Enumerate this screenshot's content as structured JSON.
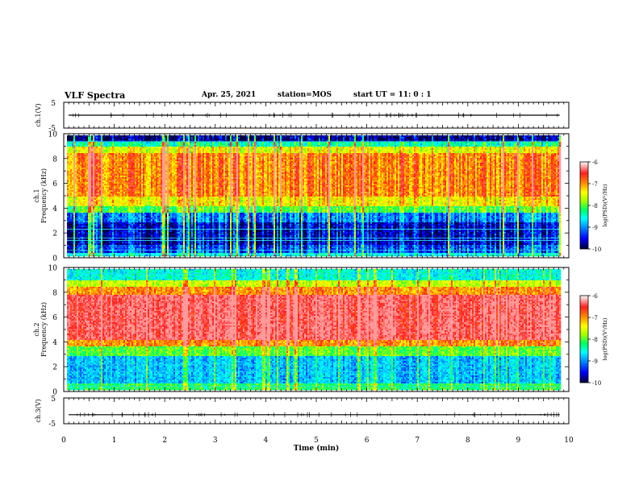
{
  "header": {
    "title": "VLF Spectra",
    "date": "Apr. 25, 2021",
    "station": "station=MOS",
    "start": "start  UT =   11: 0  : 1"
  },
  "colors": {
    "spectrum_scale": [
      "#00003a",
      "#0000ff",
      "#0090ff",
      "#00ffff",
      "#00ff60",
      "#a0ff00",
      "#ffff00",
      "#ff9000",
      "#ff2020",
      "#ff9a9a"
    ],
    "trace": "#000000"
  },
  "chart_data": [
    {
      "id": "ch1-waveform",
      "type": "line",
      "ylabel": "ch.1(V)",
      "yticks": [
        "5",
        "-5"
      ],
      "ylim": [
        -5,
        5
      ],
      "level": 0
    },
    {
      "id": "ch1-spectrogram",
      "type": "heatmap",
      "ylabel_line1": "ch.1",
      "ylabel_line2": "Frequency (kHz)",
      "yticks": [
        "0",
        "2",
        "4",
        "6",
        "8",
        "10"
      ],
      "ylim": [
        0,
        10
      ],
      "colorbar": {
        "label": "log(PSD)(V²/Hz)",
        "ticks": [
          "-6",
          "-7",
          "-8",
          "-9",
          "-10"
        ],
        "range": [
          -10,
          -6
        ]
      },
      "bands": [
        {
          "from": 0.0,
          "to": 0.4,
          "level": -8.6
        },
        {
          "from": 0.4,
          "to": 1.0,
          "level": -9.3
        },
        {
          "from": 1.0,
          "to": 2.8,
          "level": -9.6
        },
        {
          "from": 2.8,
          "to": 3.6,
          "level": -9.1
        },
        {
          "from": 3.6,
          "to": 4.2,
          "level": -8.0
        },
        {
          "from": 4.2,
          "to": 5.0,
          "level": -7.3
        },
        {
          "from": 5.0,
          "to": 8.4,
          "level": -6.8
        },
        {
          "from": 8.4,
          "to": 9.0,
          "level": -7.4
        },
        {
          "from": 9.0,
          "to": 9.4,
          "level": -8.4
        },
        {
          "from": 9.4,
          "to": 10.0,
          "level": -9.8
        }
      ]
    },
    {
      "id": "ch2-spectrogram",
      "type": "heatmap",
      "ylabel_line1": "ch.2",
      "ylabel_line2": "Frequency (kHz)",
      "yticks": [
        "0",
        "2",
        "4",
        "6",
        "8",
        "10"
      ],
      "ylim": [
        0,
        10
      ],
      "colorbar": {
        "label": "log(PSD)(V²/Hz)",
        "ticks": [
          "-6",
          "-7",
          "-8",
          "-9",
          "-10"
        ],
        "range": [
          -10,
          -6
        ]
      },
      "bands": [
        {
          "from": 0.0,
          "to": 0.6,
          "level": -8.2
        },
        {
          "from": 0.6,
          "to": 2.8,
          "level": -8.9
        },
        {
          "from": 2.8,
          "to": 3.6,
          "level": -8.0
        },
        {
          "from": 3.6,
          "to": 4.2,
          "level": -6.9
        },
        {
          "from": 4.2,
          "to": 7.8,
          "level": -6.2
        },
        {
          "from": 7.8,
          "to": 8.4,
          "level": -6.9
        },
        {
          "from": 8.4,
          "to": 9.0,
          "level": -7.6
        },
        {
          "from": 9.0,
          "to": 10.0,
          "level": -8.6
        }
      ]
    },
    {
      "id": "ch3-waveform",
      "type": "line",
      "ylabel": "ch.3(V)",
      "yticks": [
        "5",
        "-5"
      ],
      "ylim": [
        -5,
        5
      ],
      "level": -1.5
    }
  ],
  "x_axis": {
    "label": "Time (min)",
    "ticks": [
      "0",
      "1",
      "2",
      "3",
      "4",
      "5",
      "6",
      "7",
      "8",
      "9",
      "10"
    ],
    "range": [
      0,
      10
    ],
    "data_end": 9.82
  }
}
